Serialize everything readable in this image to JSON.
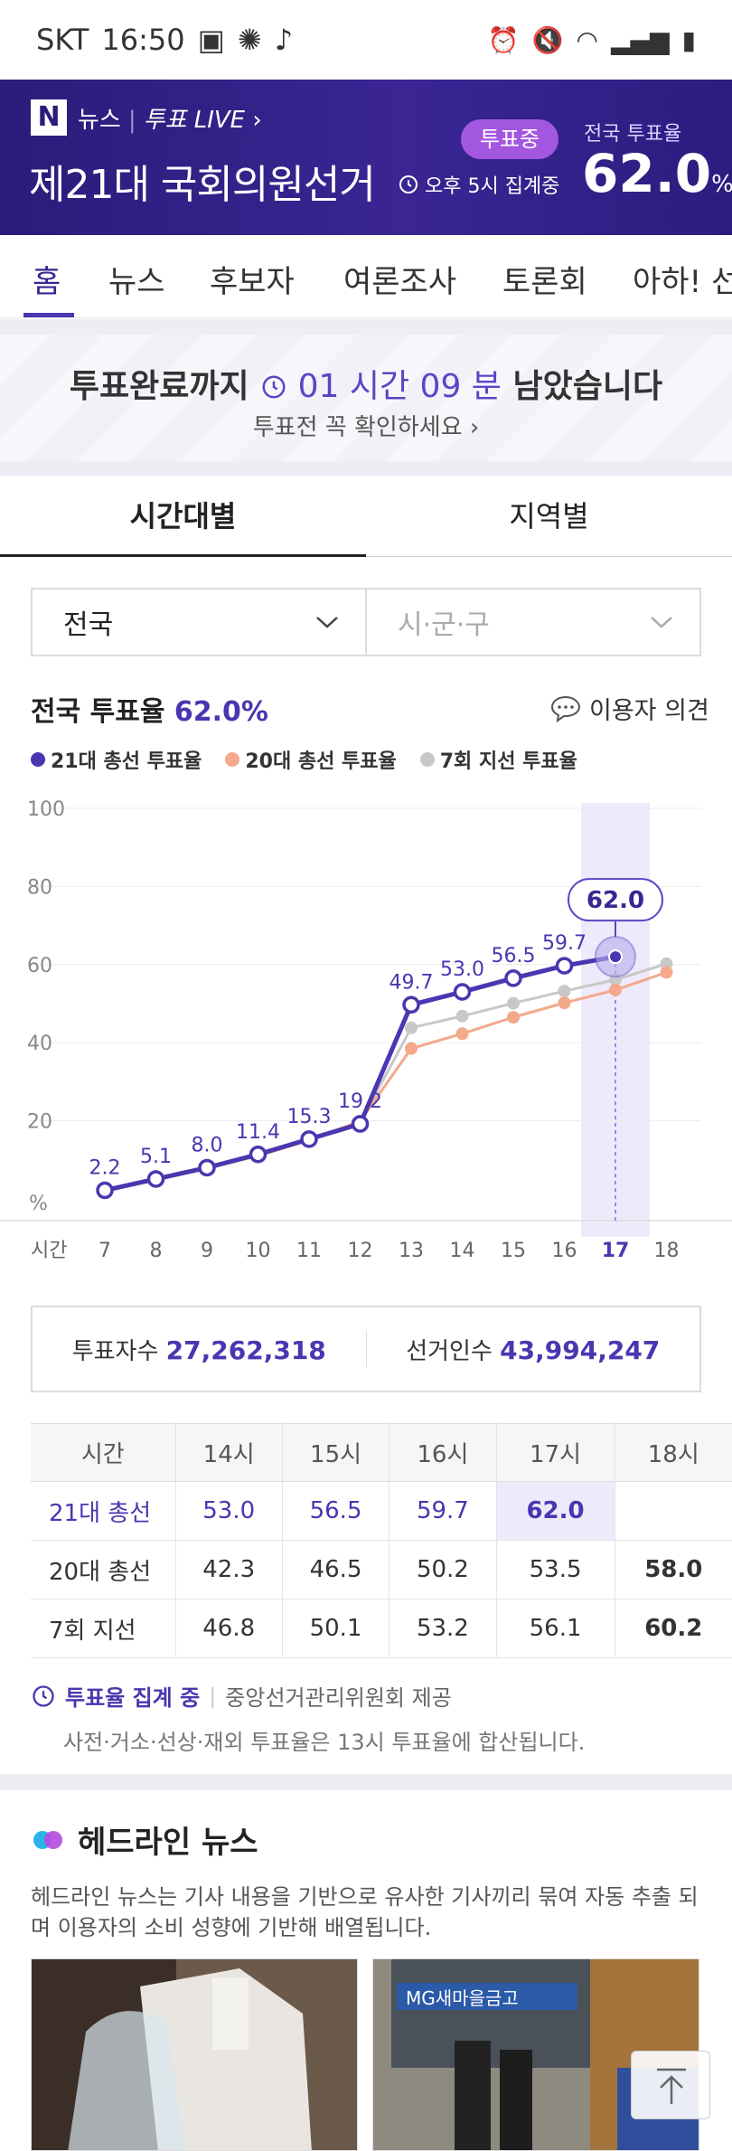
{
  "status": {
    "carrier": "SKT",
    "time": "16:50"
  },
  "hero": {
    "brand": "뉴스",
    "live": "투표 LIVE",
    "title": "제21대 국회의원선거",
    "badge": "투표중",
    "tally": "오후 5시 집계중",
    "rate_label": "전국 투표율",
    "rate": "62.0",
    "rate_unit": "%"
  },
  "tabs": [
    "홈",
    "뉴스",
    "후보자",
    "여론조사",
    "토론회",
    "아하! 선"
  ],
  "countdown": {
    "prefix": "투표완료까지",
    "time": "01 시간 09 분",
    "suffix": "남았습니다",
    "link": "투표전 꼭 확인하세요"
  },
  "subtabs": {
    "time": "시간대별",
    "region": "지역별"
  },
  "filters": {
    "region": "전국",
    "district_placeholder": "시·군·구"
  },
  "turnout": {
    "label": "전국 투표율",
    "value": "62.0%",
    "opinion": "이용자 의견"
  },
  "legend": [
    {
      "label": "21대 총선 투표율",
      "color": "#4a36b0"
    },
    {
      "label": "20대 총선 투표율",
      "color": "#f4a98a"
    },
    {
      "label": "7회 지선 투표율",
      "color": "#c8c8c8"
    }
  ],
  "chart_data": {
    "type": "line",
    "x": [
      7,
      8,
      9,
      10,
      11,
      12,
      13,
      14,
      15,
      16,
      17,
      18
    ],
    "xlabel": "시간",
    "ylabel": "%",
    "ylim": [
      0,
      100
    ],
    "yticks": [
      100,
      80,
      60,
      40,
      20
    ],
    "highlight_x": 17,
    "highlight_label": "62.0",
    "series": [
      {
        "name": "21대 총선 투표율",
        "values": [
          2.2,
          5.1,
          8.0,
          11.4,
          15.3,
          19.2,
          49.7,
          53.0,
          56.5,
          59.7,
          62.0,
          null
        ],
        "labels": [
          "2.2",
          "5.1",
          "8.0",
          "11.4",
          "15.3",
          "19.2",
          "49.7",
          "53.0",
          "56.5",
          "59.7",
          "",
          ""
        ]
      },
      {
        "name": "20대 총선 투표율",
        "values": [
          2.0,
          4.8,
          7.8,
          11.0,
          15.0,
          19.9,
          38.5,
          42.3,
          46.5,
          50.2,
          53.5,
          58.0
        ]
      },
      {
        "name": "7회 지선 투표율",
        "values": [
          2.1,
          5.0,
          8.0,
          11.2,
          15.4,
          19.5,
          43.8,
          46.8,
          50.1,
          53.2,
          56.1,
          60.2
        ]
      }
    ]
  },
  "stats": {
    "voters_label": "투표자수",
    "voters": "27,262,318",
    "electors_label": "선거인수",
    "electors": "43,994,247"
  },
  "table": {
    "headers": [
      "시간",
      "14시",
      "15시",
      "16시",
      "17시",
      "18시"
    ],
    "rows": [
      {
        "label": "21대 총선",
        "values": [
          "53.0",
          "56.5",
          "59.7",
          "62.0",
          ""
        ]
      },
      {
        "label": "20대 총선",
        "values": [
          "42.3",
          "46.5",
          "50.2",
          "53.5",
          "58.0"
        ]
      },
      {
        "label": "7회 지선",
        "values": [
          "46.8",
          "50.1",
          "53.2",
          "56.1",
          "60.2"
        ]
      }
    ]
  },
  "note": {
    "status": "투표율 집계 중",
    "source": "중앙선거관리위원회 제공",
    "desc": "사전·거소·선상·재외 투표율은 13시 투표율에 합산됩니다."
  },
  "headline": {
    "title": "헤드라인 뉴스",
    "desc": "헤드라인 뉴스는 기사 내용을 기반으로 유사한 기사끼리 묶여 자동 추출 되며 이용자의 소비 성향에 기반해 배열됩니다."
  },
  "thumb2_sign": "MG새마을금고"
}
